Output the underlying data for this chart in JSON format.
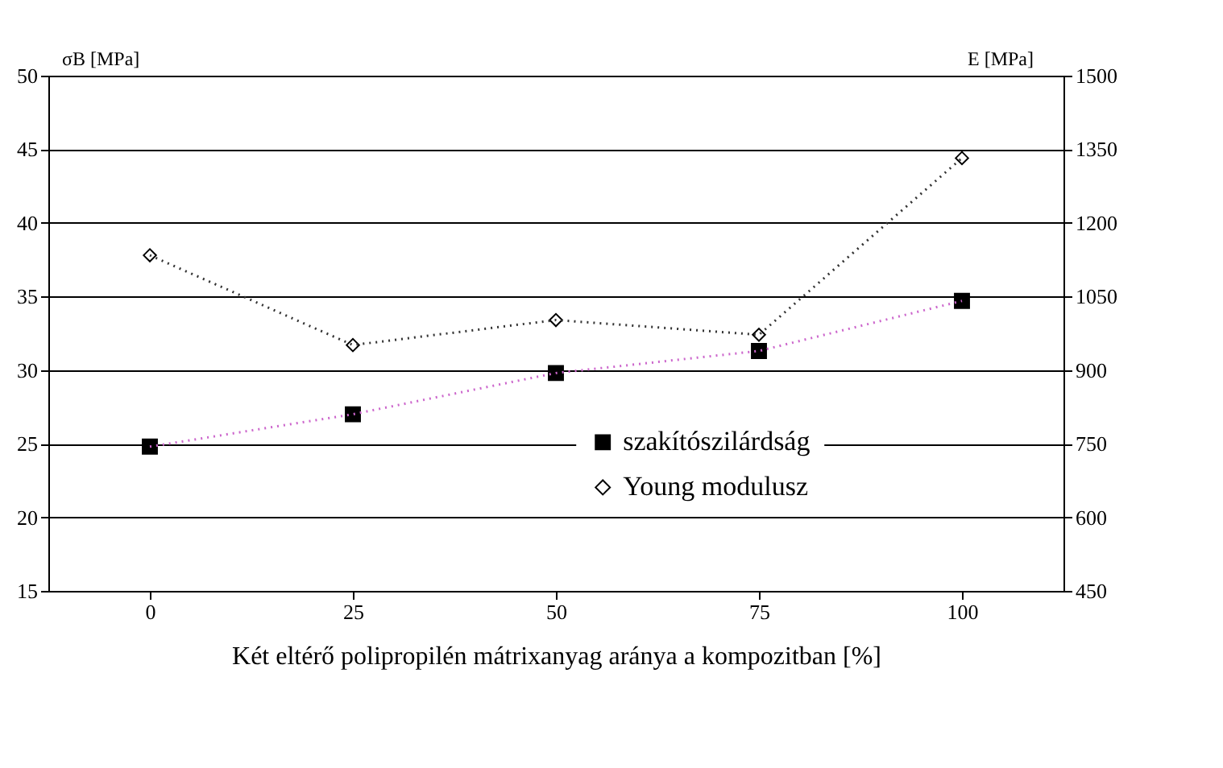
{
  "chart_data": {
    "type": "scatter",
    "xlabel": "Két eltérő polipropilén mátrixanyag aránya a kompozitban [%]",
    "ylabel": "σB [MPa]",
    "y2label": "E [MPa]",
    "categories": [
      "0",
      "25",
      "50",
      "75",
      "100"
    ],
    "series": [
      {
        "name": "szakítószilárdság",
        "type": "scatter",
        "color": "#000000",
        "marker": "square",
        "values": [
          24.8,
          27.0,
          29.8,
          31.3,
          34.7
        ]
      },
      {
        "type": "line",
        "color": "#cc66cc",
        "line_style": "dotted",
        "marker": "none",
        "values": [
          24.8,
          27.0,
          29.8,
          31.3,
          34.7
        ]
      },
      {
        "name": "Young modulusz",
        "type": "scatter",
        "color": "#000000",
        "marker": "diamond",
        "axis": "y2",
        "values": [
          1134,
          951,
          1002,
          972,
          1332
        ]
      },
      {
        "type": "line",
        "color": "#333333",
        "line_style": "dotted",
        "marker": "none",
        "axis": "y2",
        "values": [
          1134,
          951,
          1002,
          972,
          1332
        ]
      }
    ],
    "ylim": [
      15,
      50
    ],
    "yticks": [
      15,
      20,
      25,
      30,
      35,
      40,
      45,
      50
    ],
    "y2lim": [
      450,
      1500
    ],
    "y2ticks": [
      450,
      600,
      750,
      900,
      1050,
      1200,
      1350,
      1500
    ],
    "grid": "y",
    "legend": "bottom right"
  }
}
